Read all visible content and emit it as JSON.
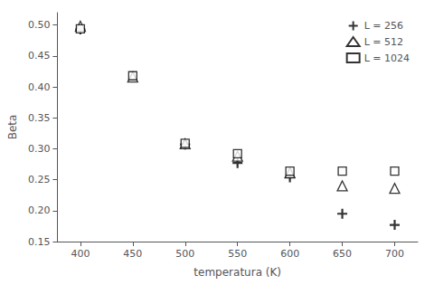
{
  "chart_data": {
    "type": "scatter",
    "xlabel": "temperatura (K)",
    "ylabel": "Beta",
    "xlim": [
      378,
      722
    ],
    "ylim": [
      0.15,
      0.52
    ],
    "xticks": [
      400,
      450,
      500,
      550,
      600,
      650,
      700
    ],
    "yticks": [
      0.15,
      {
        "value": 0.2,
        "label": "0.20"
      },
      0.25,
      {
        "value": 0.3,
        "label": "0.30"
      },
      0.35,
      {
        "value": 0.4,
        "label": "0.40"
      },
      0.45,
      {
        "value": 0.5,
        "label": "0.50"
      }
    ],
    "grid": false,
    "legend": "upper right",
    "series": [
      {
        "name": "L = 256",
        "color": "#000000",
        "marker": "plus",
        "x": [
          400,
          500,
          550,
          600,
          650,
          700
        ],
        "values": [
          0.493,
          0.307,
          0.277,
          0.254,
          0.195,
          0.177
        ]
      },
      {
        "name": "L = 512",
        "color": "#000000",
        "marker": "triangle",
        "x": [
          400,
          450,
          500,
          550,
          600,
          650,
          700
        ],
        "values": [
          0.498,
          0.416,
          0.308,
          0.288,
          0.261,
          0.24,
          0.236
        ]
      },
      {
        "name": "L = 1024",
        "color": "#000000",
        "marker": "square",
        "x": [
          400,
          450,
          500,
          550,
          600,
          650,
          700
        ],
        "values": [
          0.494,
          0.418,
          0.309,
          0.292,
          0.264,
          0.264,
          0.264
        ]
      }
    ]
  }
}
